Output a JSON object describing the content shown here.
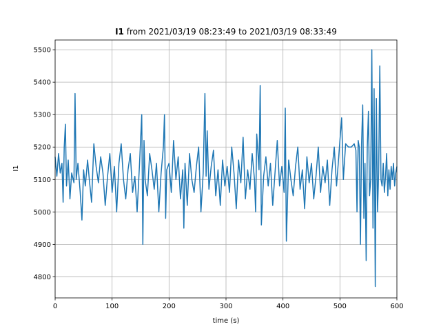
{
  "chart_data": {
    "type": "line",
    "title_bold": "I1",
    "title_rest": " from 2021/03/19 08:23:49 to 2021/03/19 08:33:49",
    "xlabel": "time (s)",
    "ylabel": "I1",
    "xlim": [
      0,
      600
    ],
    "ylim": [
      4735,
      5530
    ],
    "xticks": [
      0,
      100,
      200,
      300,
      400,
      500,
      600
    ],
    "yticks": [
      4800,
      4900,
      5000,
      5100,
      5200,
      5300,
      5400,
      5500
    ],
    "grid": true,
    "series_color": "#1f77b4",
    "series": [
      {
        "x": [
          0,
          3,
          6,
          9,
          12,
          14,
          16,
          18,
          20,
          23,
          26,
          29,
          33,
          35,
          37,
          40,
          44,
          47,
          50,
          53,
          57,
          60,
          64,
          68,
          72,
          76,
          80,
          84,
          88,
          92,
          96,
          100,
          104,
          108,
          112,
          116,
          120,
          124,
          128,
          132,
          136,
          140,
          144,
          148,
          152,
          154,
          156,
          158,
          162,
          166,
          170,
          174,
          178,
          182,
          186,
          190,
          192,
          194,
          196,
          200,
          204,
          208,
          212,
          216,
          220,
          224,
          226,
          228,
          232,
          236,
          240,
          244,
          248,
          252,
          256,
          260,
          263,
          265,
          267,
          270,
          274,
          278,
          282,
          286,
          290,
          294,
          298,
          302,
          306,
          310,
          314,
          318,
          322,
          326,
          330,
          334,
          338,
          342,
          346,
          350,
          352,
          354,
          358,
          360,
          362,
          366,
          370,
          374,
          378,
          382,
          386,
          390,
          394,
          398,
          402,
          404,
          406,
          410,
          414,
          418,
          422,
          426,
          430,
          434,
          438,
          442,
          446,
          450,
          454,
          458,
          462,
          466,
          470,
          474,
          478,
          482,
          486,
          490,
          494,
          497,
          500,
          503,
          506,
          510,
          515,
          520,
          525,
          528,
          530,
          532,
          534,
          536,
          538,
          540,
          542,
          544,
          546,
          548,
          550,
          552,
          554,
          556,
          558,
          560,
          562,
          564,
          566,
          568,
          570,
          572,
          574,
          576,
          578,
          580,
          582,
          584,
          586,
          588,
          590,
          592,
          594,
          596,
          598,
          600
        ],
        "y": [
          5170,
          5110,
          5180,
          5120,
          5150,
          5030,
          5200,
          5270,
          5080,
          5160,
          5040,
          5120,
          5090,
          5365,
          5100,
          5150,
          5060,
          4975,
          5130,
          5080,
          5160,
          5100,
          5030,
          5210,
          5140,
          5090,
          5170,
          5120,
          5020,
          5110,
          5180,
          5060,
          5140,
          5000,
          5150,
          5210,
          5100,
          5040,
          5130,
          5180,
          5060,
          5110,
          5000,
          5140,
          5300,
          4900,
          5220,
          5100,
          5050,
          5180,
          5130,
          5070,
          5150,
          5000,
          5120,
          5200,
          5300,
          4980,
          5130,
          5150,
          5060,
          5220,
          5100,
          5170,
          5040,
          5130,
          4950,
          5150,
          5020,
          5180,
          5100,
          5060,
          5140,
          5200,
          5000,
          5120,
          5365,
          5110,
          5250,
          5070,
          5140,
          5190,
          5050,
          5130,
          5020,
          5160,
          5080,
          5140,
          5060,
          5200,
          5120,
          5010,
          5160,
          5090,
          5230,
          5040,
          5130,
          5070,
          5180,
          5100,
          5000,
          5240,
          5130,
          5390,
          4960,
          5110,
          5170,
          5080,
          5150,
          5020,
          5120,
          5220,
          5080,
          5140,
          5060,
          5320,
          4910,
          5160,
          5100,
          5050,
          5140,
          5200,
          5070,
          5130,
          5010,
          5170,
          5090,
          5150,
          5040,
          5110,
          5200,
          5060,
          5140,
          5090,
          5160,
          5020,
          5130,
          5200,
          5080,
          5150,
          5220,
          5290,
          5100,
          5210,
          5200,
          5200,
          5210,
          5190,
          5000,
          5220,
          5200,
          4900,
          5210,
          5330,
          4980,
          5150,
          4850,
          5200,
          5310,
          5050,
          5100,
          5500,
          4950,
          5380,
          4770,
          5350,
          5000,
          5120,
          5450,
          5100,
          5080,
          5150,
          5060,
          5110,
          5180,
          5050,
          5130,
          5070,
          5140,
          5100,
          5150,
          5080,
          5120,
          5140
        ]
      }
    ]
  }
}
